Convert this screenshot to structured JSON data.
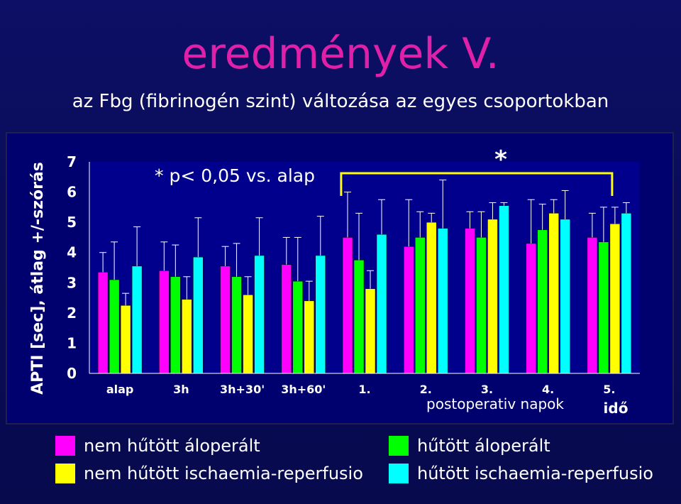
{
  "title": "eredmények V.",
  "subtitle": "az Fbg (fibrinogén szint) változása az egyes csoportokban",
  "colors": {
    "background": "#0b0d5e",
    "plot_background": "#00008c",
    "title": "#e020a8",
    "text": "#ffffff",
    "gridline": "#6060a0"
  },
  "chart_data": {
    "type": "bar",
    "ylabel": "APTI [sec], átlag +/-szórás",
    "xlabel": "postoperativ napok",
    "x_corner_label": "idő",
    "ylim": [
      0,
      7
    ],
    "yticks": [
      0,
      1,
      2,
      3,
      4,
      5,
      6,
      7
    ],
    "categories": [
      "alap",
      "3h",
      "3h+30'",
      "3h+60'",
      "1.",
      "2.",
      "3.",
      "4.",
      "5."
    ],
    "significance_note": "* p< 0,05 vs. alap",
    "significance_marker": "*",
    "grid": false,
    "series": [
      {
        "name": "nem hűtött áloperált",
        "color": "#ff00ff",
        "values": [
          3.35,
          3.4,
          3.55,
          3.6,
          4.5,
          4.2,
          4.8,
          4.3,
          4.5
        ],
        "errors": [
          0.65,
          0.95,
          0.65,
          0.9,
          1.5,
          1.55,
          0.55,
          1.45,
          0.8
        ]
      },
      {
        "name": "hűtött áloperált",
        "color": "#00ff00",
        "values": [
          3.1,
          3.2,
          3.2,
          3.05,
          3.75,
          4.5,
          4.5,
          4.75,
          4.35
        ],
        "errors": [
          1.25,
          1.05,
          1.1,
          1.45,
          1.55,
          0.85,
          0.85,
          0.85,
          1.15
        ]
      },
      {
        "name": "nem hűtött ischaemia-reperfusio",
        "color": "#ffff00",
        "values": [
          2.25,
          2.45,
          2.6,
          2.4,
          2.8,
          5.0,
          5.1,
          5.3,
          4.95
        ],
        "errors": [
          0.4,
          0.75,
          0.6,
          0.65,
          0.6,
          0.3,
          0.55,
          0.45,
          0.55
        ]
      },
      {
        "name": "hűtött ischaemia-reperfusio",
        "color": "#00ffff",
        "values": [
          3.55,
          3.85,
          3.9,
          3.9,
          4.6,
          4.8,
          5.55,
          5.1,
          5.3
        ],
        "errors": [
          1.3,
          1.3,
          1.25,
          1.3,
          1.15,
          1.6,
          0.1,
          0.95,
          0.35
        ]
      }
    ]
  },
  "legend": [
    {
      "label": "nem hűtött áloperált",
      "color": "#ff00ff"
    },
    {
      "label": "hűtött áloperált",
      "color": "#00ff00"
    },
    {
      "label": "nem hűtött ischaemia-reperfusio",
      "color": "#ffff00"
    },
    {
      "label": "hűtött ischaemia-reperfusio",
      "color": "#00ffff"
    }
  ]
}
